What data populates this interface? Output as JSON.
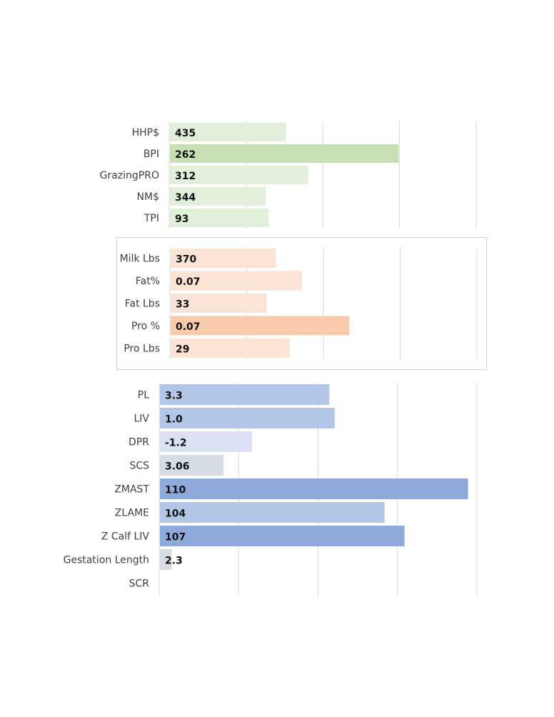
{
  "chart_data": [
    {
      "type": "bar",
      "orientation": "horizontal",
      "categories": [
        "HHP$",
        "BPI",
        "GrazingPRO",
        "NM$",
        "TPI"
      ],
      "values": [
        435,
        262,
        312,
        344,
        93
      ],
      "data_labels": [
        "435",
        "262",
        "312",
        "344",
        "93"
      ],
      "bar_fraction": [
        0.378,
        0.745,
        0.45,
        0.312,
        0.322
      ],
      "colors": [
        "#e2efda",
        "#c6e0b4",
        "#e2efda",
        "#e2efda",
        "#e2efda"
      ],
      "grid": true,
      "legend": "none"
    },
    {
      "type": "bar",
      "orientation": "horizontal",
      "categories": [
        "Milk Lbs",
        "Fat%",
        "Fat Lbs",
        "Pro %",
        "Pro Lbs"
      ],
      "values": [
        370,
        0.07,
        33,
        0.07,
        29
      ],
      "data_labels": [
        "370",
        "0.07",
        "33",
        "0.07",
        "29"
      ],
      "bar_fraction": [
        0.343,
        0.428,
        0.313,
        0.582,
        0.388
      ],
      "colors": [
        "#fbe4d5",
        "#fbe4d5",
        "#fbe4d5",
        "#f8cbad",
        "#fbe4d5"
      ],
      "grid": true,
      "legend": "none",
      "framed": true
    },
    {
      "type": "bar",
      "orientation": "horizontal",
      "categories": [
        "PL",
        "LIV",
        "DPR",
        "SCS",
        "ZMAST",
        "ZLAME",
        "Z Calf LIV",
        "Gestation Length",
        "SCR"
      ],
      "values": [
        3.3,
        1.0,
        -1.2,
        3.06,
        110,
        104,
        107,
        2.3,
        null
      ],
      "data_labels": [
        "3.3",
        "1.0",
        "-1.2",
        "3.06",
        "110",
        "104",
        "107",
        "2.3",
        ""
      ],
      "bar_fraction": [
        0.533,
        0.55,
        0.29,
        0.2,
        0.97,
        0.707,
        0.77,
        0.037,
        0
      ],
      "colors": [
        "#b4c6e7",
        "#b4c6e7",
        "#d9e1f2",
        "#d6dce4",
        "#8eaadb",
        "#b4c6e7",
        "#8eaadb",
        "#d6dce4",
        "#d6dce4"
      ],
      "grid": true,
      "legend": "none"
    }
  ]
}
